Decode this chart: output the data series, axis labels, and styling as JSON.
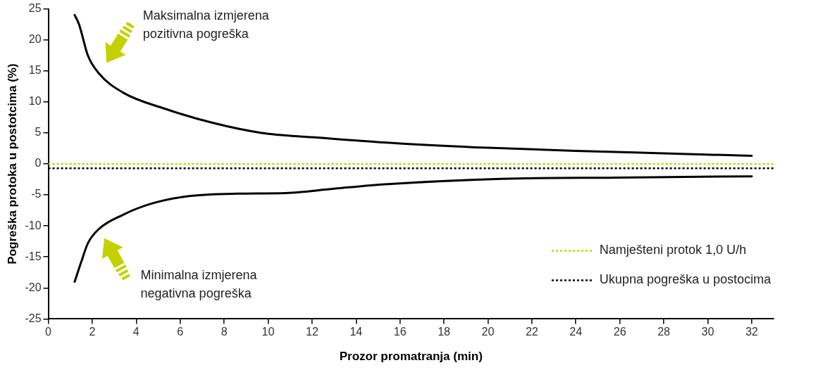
{
  "chart_data": {
    "type": "line",
    "xlabel": "Prozor promatranja (min)",
    "ylabel": "Pogreška protoka u postotcima (%)",
    "xlim": [
      0,
      33
    ],
    "xticks": [
      0,
      2,
      4,
      6,
      8,
      10,
      12,
      14,
      16,
      18,
      20,
      22,
      24,
      26,
      28,
      30,
      32
    ],
    "ylim": [
      -25,
      25
    ],
    "yticks": [
      -25,
      -20,
      -15,
      -10,
      -5,
      0,
      5,
      10,
      15,
      20,
      25
    ],
    "grid": false,
    "legend": "bottom right",
    "annotations": [
      "Maksimalna izmjerena pozitivna pogreška",
      "Minimalna izmjerena negativna pogreška"
    ],
    "series": [
      {
        "type": "line",
        "color": "#000000",
        "line_style": "solid",
        "x": [
          1.2,
          1.4,
          1.8,
          2.3,
          3.4,
          5.3,
          7.5,
          9.7,
          12,
          16,
          20,
          24,
          28,
          32
        ],
        "values": [
          24,
          22.5,
          17.5,
          14.6,
          11.5,
          8.9,
          6.6,
          5.0,
          4.3,
          3.3,
          2.6,
          2.1,
          1.7,
          1.3
        ]
      },
      {
        "type": "line",
        "color": "#000000",
        "line_style": "solid",
        "x": [
          1.2,
          1.5,
          1.8,
          2.3,
          3.4,
          4.7,
          6.4,
          8.6,
          10.8,
          13,
          15.3,
          20.6,
          25.9,
          32
        ],
        "values": [
          -19,
          -15.8,
          -12.8,
          -10.5,
          -8.2,
          -6.4,
          -5.2,
          -4.8,
          -4.7,
          -4.0,
          -3.3,
          -2.4,
          -2.2,
          -2.0
        ]
      },
      {
        "type": "line",
        "name": "Namješteni protok 1,0 U/h",
        "color": "#c3d100",
        "line_style": "dotted",
        "x": [
          0,
          33
        ],
        "values": [
          0,
          0
        ]
      },
      {
        "type": "line",
        "name": "Ukupna pogreška u postocima",
        "color": "#000000",
        "line_style": "dotted",
        "x": [
          0,
          33
        ],
        "values": [
          -0.7,
          -0.7
        ]
      }
    ]
  }
}
